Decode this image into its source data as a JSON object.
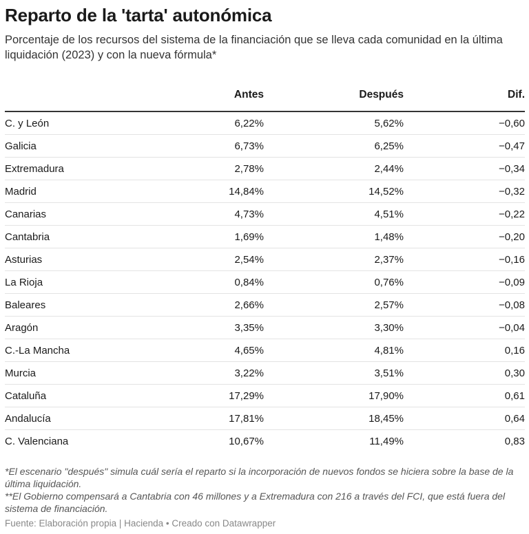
{
  "header": {
    "title": "Reparto de la 'tarta' autonómica",
    "subtitle": "Porcentaje de los recursos del sistema de la financiación que se lleva cada comunidad en la última liquidación (2023) y con la nueva fórmula*"
  },
  "chart_data": {
    "type": "table",
    "columns": [
      "",
      "Antes",
      "Después",
      "Dif."
    ],
    "rows": [
      [
        "C. y León",
        "6,22%",
        "5,62%",
        "−0,60"
      ],
      [
        "Galicia",
        "6,73%",
        "6,25%",
        "−0,47"
      ],
      [
        "Extremadura",
        "2,78%",
        "2,44%",
        "−0,34"
      ],
      [
        "Madrid",
        "14,84%",
        "14,52%",
        "−0,32"
      ],
      [
        "Canarias",
        "4,73%",
        "4,51%",
        "−0,22"
      ],
      [
        "Cantabria",
        "1,69%",
        "1,48%",
        "−0,20"
      ],
      [
        "Asturias",
        "2,54%",
        "2,37%",
        "−0,16"
      ],
      [
        "La Rioja",
        "0,84%",
        "0,76%",
        "−0,09"
      ],
      [
        "Baleares",
        "2,66%",
        "2,57%",
        "−0,08"
      ],
      [
        "Aragón",
        "3,35%",
        "3,30%",
        "−0,04"
      ],
      [
        "C.-La Mancha",
        "4,65%",
        "4,81%",
        "0,16"
      ],
      [
        "Murcia",
        "3,22%",
        "3,51%",
        "0,30"
      ],
      [
        "Cataluña",
        "17,29%",
        "17,90%",
        "0,61"
      ],
      [
        "Andalucía",
        "17,81%",
        "18,45%",
        "0,64"
      ],
      [
        "C. Valenciana",
        "10,67%",
        "11,49%",
        "0,83"
      ]
    ]
  },
  "footer": {
    "note1": "*El escenario \"después\" simula cuál sería el reparto si la incorporación de nuevos fondos se hiciera sobre la base de la última liquidación.",
    "note2": "**El Gobierno compensará a Cantabria con 46 millones y a Extremadura con 216 a través del FCI, que está fuera del sistema de financiación.",
    "source": "Fuente: Elaboración propia | Hacienda • Creado con Datawrapper"
  }
}
